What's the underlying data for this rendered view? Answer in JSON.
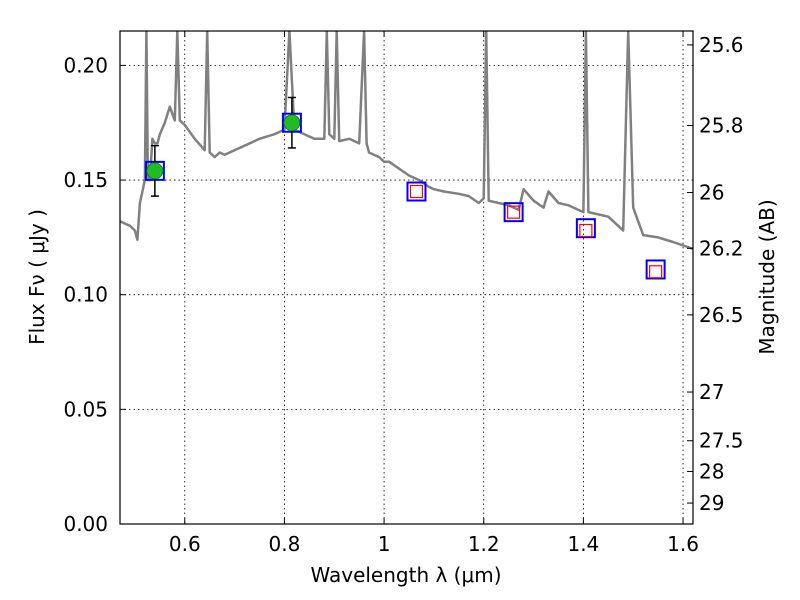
{
  "chart_data": {
    "type": "scatter",
    "title": "",
    "xlabel": "Wavelength  λ (μm)",
    "ylabel": "Flux  Fν  ( μJy )",
    "ylabel_right": "Magnitude (AB)",
    "xlim": [
      0.47,
      1.62
    ],
    "ylim": [
      0.0,
      0.215
    ],
    "grid": true,
    "x_ticks": [
      {
        "value": 0.6,
        "label": "0.6"
      },
      {
        "value": 0.8,
        "label": "0.8"
      },
      {
        "value": 1.0,
        "label": "1"
      },
      {
        "value": 1.2,
        "label": "1.2"
      },
      {
        "value": 1.4,
        "label": "1.4"
      },
      {
        "value": 1.6,
        "label": "1.6"
      }
    ],
    "y_ticks": [
      {
        "value": 0.0,
        "label": "0.00"
      },
      {
        "value": 0.05,
        "label": "0.05"
      },
      {
        "value": 0.1,
        "label": "0.10"
      },
      {
        "value": 0.15,
        "label": "0.15"
      },
      {
        "value": 0.2,
        "label": "0.20"
      }
    ],
    "right_ticks": [
      {
        "value": 25.6,
        "label": "25.6"
      },
      {
        "value": 25.8,
        "label": "25.8"
      },
      {
        "value": 26.0,
        "label": "26"
      },
      {
        "value": 26.2,
        "label": "26.2"
      },
      {
        "value": 26.5,
        "label": "26.5"
      },
      {
        "value": 27.0,
        "label": "27"
      },
      {
        "value": 27.5,
        "label": "27.5"
      },
      {
        "value": 28.0,
        "label": "28"
      },
      {
        "value": 29.0,
        "label": "29"
      }
    ],
    "colors": {
      "model": "#808080",
      "observed_fill": "#22bb22",
      "observed_edge": "#0c7a0c",
      "model_box": "#0000ff",
      "upper_box": "#ff0000",
      "errorbar": "#000000"
    },
    "series": [
      {
        "kind": "model_spectrum",
        "x": [
          0.47,
          0.48,
          0.49,
          0.5,
          0.505,
          0.51,
          0.515,
          0.52,
          0.523,
          0.526,
          0.53,
          0.535,
          0.54,
          0.545,
          0.55,
          0.56,
          0.57,
          0.58,
          0.585,
          0.59,
          0.6,
          0.62,
          0.64,
          0.645,
          0.65,
          0.66,
          0.67,
          0.68,
          0.7,
          0.72,
          0.75,
          0.78,
          0.8,
          0.81,
          0.82,
          0.84,
          0.86,
          0.88,
          0.885,
          0.89,
          0.9,
          0.905,
          0.91,
          0.93,
          0.95,
          0.96,
          0.965,
          0.97,
          0.99,
          1.0,
          1.01,
          1.03,
          1.05,
          1.07,
          1.09,
          1.1,
          1.12,
          1.15,
          1.17,
          1.19,
          1.2,
          1.205,
          1.21,
          1.23,
          1.25,
          1.27,
          1.28,
          1.3,
          1.32,
          1.33,
          1.35,
          1.37,
          1.39,
          1.4,
          1.405,
          1.41,
          1.43,
          1.45,
          1.47,
          1.48,
          1.49,
          1.5,
          1.52,
          1.55,
          1.58,
          1.62
        ],
        "y": [
          0.132,
          0.131,
          0.13,
          0.128,
          0.124,
          0.14,
          0.145,
          0.15,
          0.215,
          0.15,
          0.15,
          0.168,
          0.166,
          0.166,
          0.17,
          0.175,
          0.182,
          0.176,
          0.215,
          0.176,
          0.174,
          0.168,
          0.163,
          0.215,
          0.162,
          0.16,
          0.162,
          0.161,
          0.163,
          0.165,
          0.168,
          0.17,
          0.172,
          0.215,
          0.172,
          0.17,
          0.168,
          0.168,
          0.215,
          0.17,
          0.168,
          0.215,
          0.167,
          0.168,
          0.166,
          0.215,
          0.166,
          0.162,
          0.16,
          0.158,
          0.158,
          0.155,
          0.152,
          0.15,
          0.147,
          0.146,
          0.145,
          0.144,
          0.143,
          0.14,
          0.142,
          0.215,
          0.141,
          0.14,
          0.139,
          0.137,
          0.146,
          0.141,
          0.138,
          0.145,
          0.14,
          0.139,
          0.137,
          0.136,
          0.215,
          0.136,
          0.135,
          0.134,
          0.13,
          0.128,
          0.215,
          0.138,
          0.126,
          0.125,
          0.123,
          0.12
        ]
      },
      {
        "kind": "observed",
        "points": [
          {
            "x": 0.54,
            "y": 0.154,
            "yerr": 0.011
          },
          {
            "x": 0.815,
            "y": 0.175,
            "yerr": 0.011
          }
        ]
      },
      {
        "kind": "model_photometry",
        "points": [
          {
            "x": 0.54,
            "y": 0.154
          },
          {
            "x": 0.815,
            "y": 0.175
          },
          {
            "x": 1.065,
            "y": 0.145
          },
          {
            "x": 1.26,
            "y": 0.136
          },
          {
            "x": 1.405,
            "y": 0.129
          },
          {
            "x": 1.545,
            "y": 0.111
          }
        ]
      },
      {
        "kind": "upper_limits",
        "points": [
          {
            "x": 1.065,
            "y": 0.145
          },
          {
            "x": 1.26,
            "y": 0.136
          },
          {
            "x": 1.405,
            "y": 0.128
          },
          {
            "x": 1.545,
            "y": 0.11
          }
        ]
      }
    ]
  }
}
